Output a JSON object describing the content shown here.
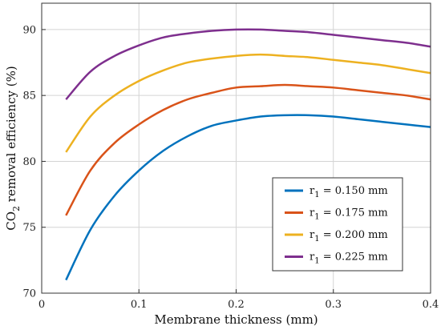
{
  "chart_data": {
    "type": "line",
    "title": "",
    "xlabel": "Membrane thickness (mm)",
    "ylabel_parts": [
      "CO",
      "2",
      " removal efficiency (%)"
    ],
    "xlim": [
      0,
      0.4
    ],
    "ylim": [
      70,
      92
    ],
    "xticks": [
      0,
      0.1,
      0.2,
      0.3,
      0.4
    ],
    "xtick_labels": [
      "0",
      "0.1",
      "0.2",
      "0.3",
      "0.4"
    ],
    "yticks": [
      70,
      75,
      80,
      85,
      90
    ],
    "ytick_labels": [
      "70",
      "75",
      "80",
      "85",
      "90"
    ],
    "grid": true,
    "legend_position": "bottom-right",
    "series": [
      {
        "name": "r1 = 0.150 mm",
        "legend": {
          "prefix": "r",
          "sub": "1",
          "suffix": " = 0.150 mm"
        },
        "color": "#0072BD",
        "x": [
          0.025,
          0.05,
          0.075,
          0.1,
          0.125,
          0.15,
          0.175,
          0.2,
          0.225,
          0.25,
          0.275,
          0.3,
          0.325,
          0.35,
          0.375,
          0.4
        ],
        "y": [
          71.0,
          74.8,
          77.4,
          79.3,
          80.8,
          81.9,
          82.7,
          83.1,
          83.4,
          83.5,
          83.5,
          83.4,
          83.2,
          83.0,
          82.8,
          82.6
        ]
      },
      {
        "name": "r1 = 0.175 mm",
        "legend": {
          "prefix": "r",
          "sub": "1",
          "suffix": " = 0.175 mm"
        },
        "color": "#D95319",
        "x": [
          0.025,
          0.05,
          0.075,
          0.1,
          0.125,
          0.15,
          0.175,
          0.2,
          0.225,
          0.25,
          0.275,
          0.3,
          0.325,
          0.35,
          0.375,
          0.4
        ],
        "y": [
          75.9,
          79.3,
          81.4,
          82.8,
          83.9,
          84.7,
          85.2,
          85.6,
          85.7,
          85.8,
          85.7,
          85.6,
          85.4,
          85.2,
          85.0,
          84.7
        ]
      },
      {
        "name": "r1 = 0.200 mm",
        "legend": {
          "prefix": "r",
          "sub": "1",
          "suffix": " = 0.200 mm"
        },
        "color": "#EDB120",
        "x": [
          0.025,
          0.05,
          0.075,
          0.1,
          0.125,
          0.15,
          0.175,
          0.2,
          0.225,
          0.25,
          0.275,
          0.3,
          0.325,
          0.35,
          0.375,
          0.4
        ],
        "y": [
          80.7,
          83.4,
          85.0,
          86.1,
          86.9,
          87.5,
          87.8,
          88.0,
          88.1,
          88.0,
          87.9,
          87.7,
          87.5,
          87.3,
          87.0,
          86.7
        ]
      },
      {
        "name": "r1 = 0.225 mm",
        "legend": {
          "prefix": "r",
          "sub": "1",
          "suffix": " = 0.225 mm"
        },
        "color": "#7E2F8E",
        "x": [
          0.025,
          0.05,
          0.075,
          0.1,
          0.125,
          0.15,
          0.175,
          0.2,
          0.225,
          0.25,
          0.275,
          0.3,
          0.325,
          0.35,
          0.375,
          0.4
        ],
        "y": [
          84.7,
          86.8,
          88.0,
          88.8,
          89.4,
          89.7,
          89.9,
          90.0,
          90.0,
          89.9,
          89.8,
          89.6,
          89.4,
          89.2,
          89.0,
          88.7
        ]
      }
    ]
  }
}
